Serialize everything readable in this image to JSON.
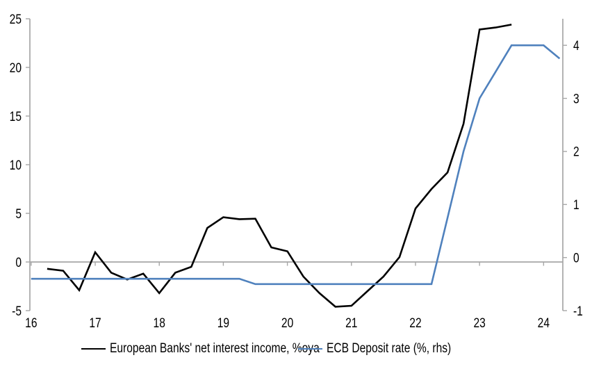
{
  "chart_data": {
    "type": "line",
    "title": "",
    "x_axis": {
      "ticks": [
        16,
        17,
        18,
        19,
        20,
        21,
        22,
        23,
        24
      ],
      "range": [
        15.98,
        24.3
      ]
    },
    "left_axis": {
      "ticks": [
        -5,
        0,
        5,
        10,
        15,
        20,
        25
      ],
      "range": [
        -5,
        25
      ]
    },
    "right_axis": {
      "ticks": [
        -1,
        0,
        1,
        2,
        3,
        4
      ],
      "range": [
        -1,
        4.5
      ]
    },
    "grid": "zero-line-only",
    "legend_position": "bottom-center",
    "series": [
      {
        "name": "European Banks' net interest income, %oya",
        "axis": "left",
        "color": "#000000",
        "x": [
          16.25,
          16.5,
          16.75,
          17.0,
          17.25,
          17.5,
          17.75,
          18.0,
          18.25,
          18.5,
          18.75,
          19.0,
          19.25,
          19.5,
          19.75,
          20.0,
          20.25,
          20.5,
          20.75,
          21.0,
          21.25,
          21.5,
          21.75,
          22.0,
          22.25,
          22.5,
          22.75,
          23.0,
          23.25,
          23.5
        ],
        "values": [
          -0.7,
          -0.9,
          -2.9,
          1.0,
          -1.1,
          -1.8,
          -1.2,
          -3.2,
          -1.1,
          -0.5,
          3.5,
          4.6,
          4.4,
          4.45,
          1.5,
          1.1,
          -1.5,
          -3.2,
          -4.6,
          -4.5,
          -3.0,
          -1.5,
          0.5,
          5.5,
          7.5,
          9.2,
          14.2,
          23.9,
          24.1,
          24.4
        ]
      },
      {
        "name": "ECB Deposit rate (%, rhs)",
        "axis": "right",
        "color": "#4F81BD",
        "x": [
          16.0,
          16.25,
          16.5,
          16.75,
          17.0,
          17.25,
          17.5,
          17.75,
          18.0,
          18.25,
          18.5,
          18.75,
          19.0,
          19.25,
          19.5,
          19.75,
          20.0,
          20.25,
          20.5,
          20.75,
          21.0,
          21.25,
          21.5,
          21.75,
          22.0,
          22.25,
          22.5,
          22.75,
          23.0,
          23.25,
          23.5,
          23.75,
          24.0,
          24.25
        ],
        "values": [
          -0.4,
          -0.4,
          -0.4,
          -0.4,
          -0.4,
          -0.4,
          -0.4,
          -0.4,
          -0.4,
          -0.4,
          -0.4,
          -0.4,
          -0.4,
          -0.4,
          -0.5,
          -0.5,
          -0.5,
          -0.5,
          -0.5,
          -0.5,
          -0.5,
          -0.5,
          -0.5,
          -0.5,
          -0.5,
          -0.5,
          0.75,
          2.0,
          3.0,
          3.5,
          4.0,
          4.0,
          4.0,
          3.75
        ]
      }
    ]
  },
  "colors": {
    "axis": "#a6a6a6",
    "zero_line": "#a6a6a6",
    "text": "#000000",
    "background": "#ffffff",
    "nii_black": "#000000",
    "ecb_blue": "#4F81BD"
  }
}
